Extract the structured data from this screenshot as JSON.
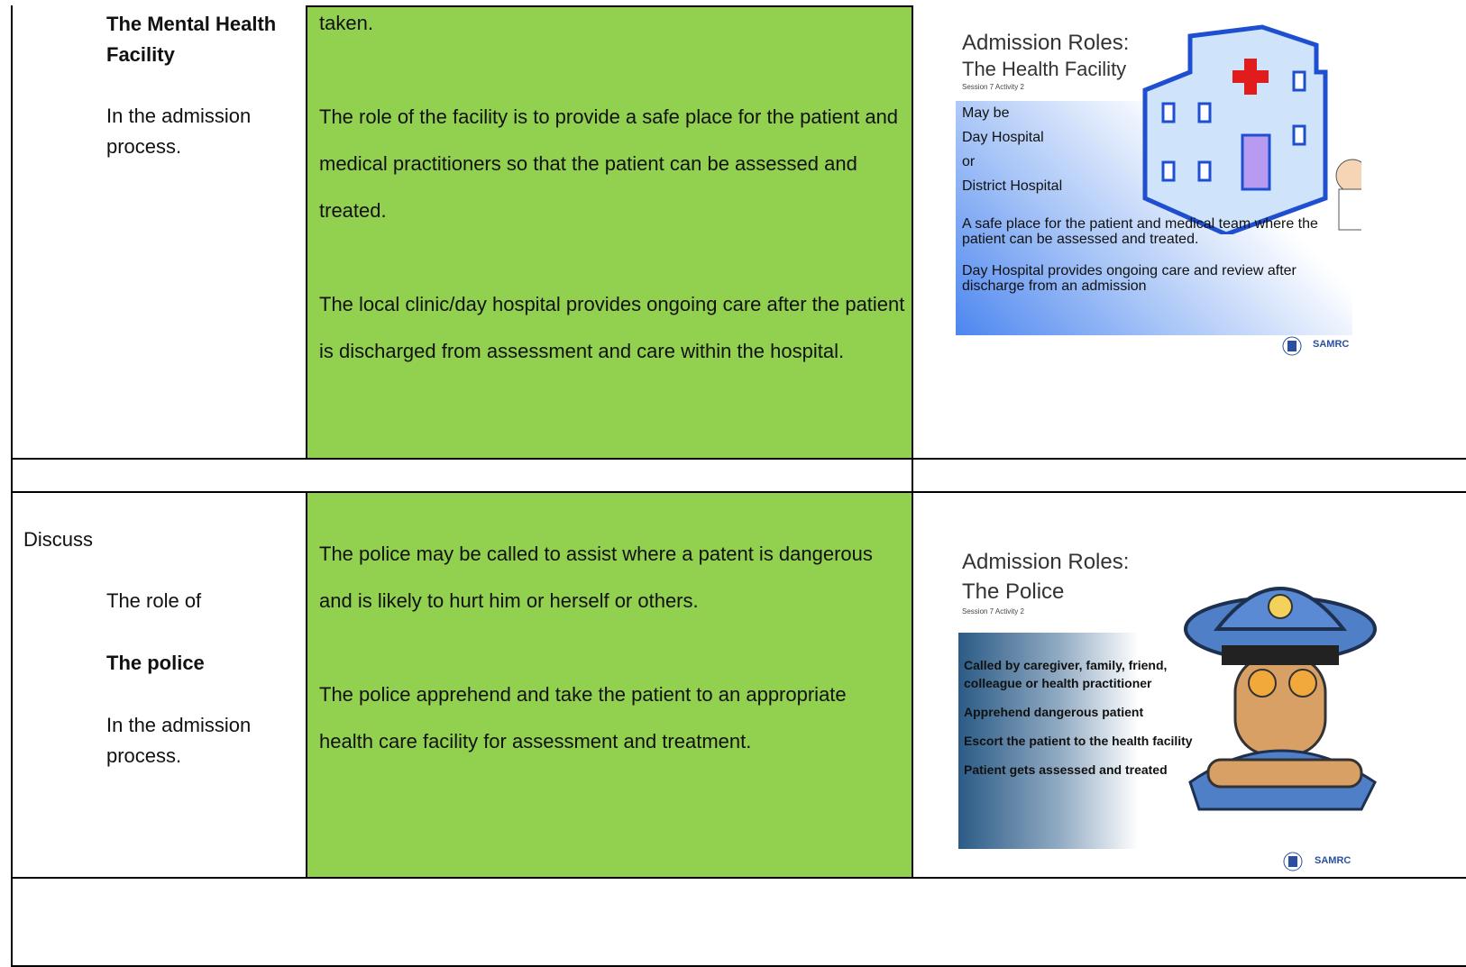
{
  "rows": [
    {
      "left": {
        "title": "The Mental Health Facility",
        "note": "In the admission process."
      },
      "middle": {
        "continued": "taken.",
        "paragraphs": [
          "The role of the facility is to provide a safe place for the patient and medical practitioners so that the patient can be assessed and treated.",
          "The local clinic/day hospital provides ongoing care after the patient is discharged from assessment and care within the hospital."
        ]
      },
      "slide": {
        "title": "Admission Roles:",
        "subtitle": "The Health Facility",
        "session": "Session 7 Activity 2",
        "lines": [
          "May be",
          "Day Hospital",
          "or",
          "District Hospital"
        ],
        "points": [
          "A safe place for the patient and medical team where the patient can be assessed and treated.",
          "Day Hospital provides ongoing care and review after discharge from an admission"
        ],
        "logo": "SAMRC"
      }
    },
    {
      "left": {
        "prompt": "Discuss",
        "lead": "The role of",
        "title": "The police",
        "note": "In the admission process."
      },
      "middle": {
        "paragraphs": [
          "The police may be called to assist where a patent is dangerous and is likely to hurt him or herself or others.",
          "The police apprehend and take the patient to an appropriate health care facility for assessment and treatment."
        ]
      },
      "slide": {
        "title": "Admission Roles:",
        "subtitle": "The Police",
        "session": "Session 7 Activity 2",
        "points": [
          "Called by caregiver, family, friend, colleague or health practitioner",
          "Apprehend dangerous patient",
          "Escort the patient to the health facility",
          "Patient gets assessed and treated"
        ],
        "logo": "SAMRC"
      }
    }
  ]
}
